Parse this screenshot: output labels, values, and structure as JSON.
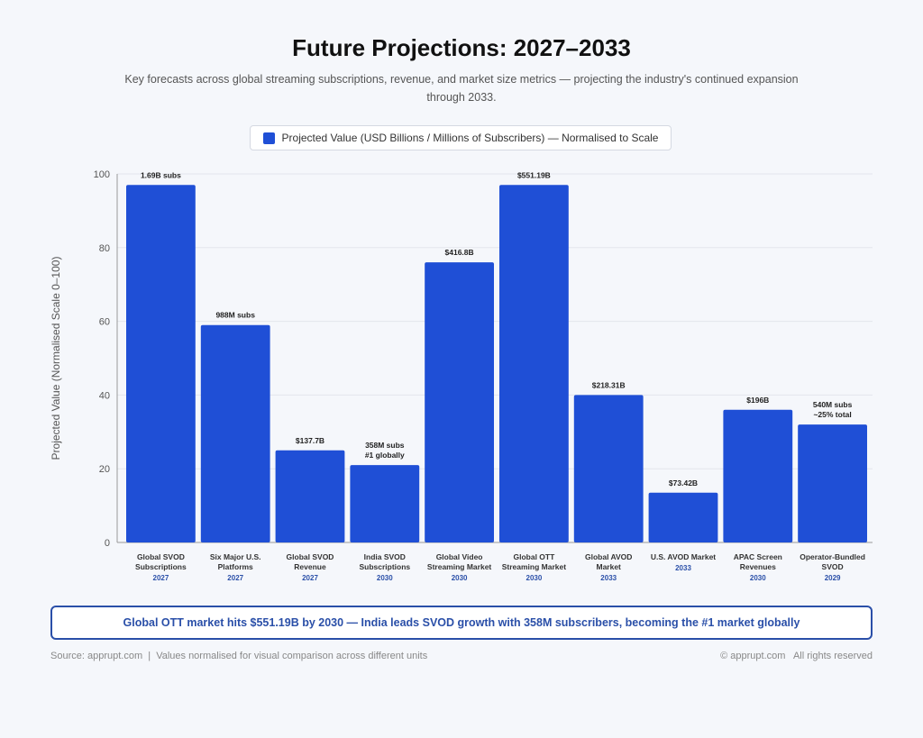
{
  "header": {
    "title": "Future Projections: 2027–2033",
    "subtitle": "Key forecasts across global streaming subscriptions, revenue, and market size metrics — projecting the industry's continued expansion through 2033."
  },
  "legend": {
    "label": "Projected Value (USD Billions / Millions of Subscribers) — Normalised to Scale"
  },
  "callout": "Global OTT market hits $551.19B by 2030 — India leads SVOD growth with 358M subscribers, becoming the #1 market globally",
  "footer": {
    "left": "Source: apprupt.com  |  Values normalised for visual comparison across different units",
    "right": "© apprupt.com   All rights reserved"
  },
  "chart_data": {
    "type": "bar",
    "ylabel": "Projected Value (Normalised Scale 0–100)",
    "xlabel": "",
    "ylim": [
      0,
      100
    ],
    "yticks": [
      0,
      20,
      40,
      60,
      80,
      100
    ],
    "grid": true,
    "bar_color": "#1f4fd6",
    "year_color": "#2a4fa8",
    "categories": [
      {
        "label": [
          "Global SVOD",
          "Subscriptions"
        ],
        "year": "2027",
        "value": 97,
        "data_label": [
          "1.69B subs"
        ]
      },
      {
        "label": [
          "Six Major U.S.",
          "Platforms"
        ],
        "year": "2027",
        "value": 59,
        "data_label": [
          "988M subs"
        ]
      },
      {
        "label": [
          "Global SVOD",
          "Revenue"
        ],
        "year": "2027",
        "value": 25,
        "data_label": [
          "$137.7B"
        ]
      },
      {
        "label": [
          "India SVOD",
          "Subscriptions"
        ],
        "year": "2030",
        "value": 21,
        "data_label": [
          "358M subs",
          "#1 globally"
        ]
      },
      {
        "label": [
          "Global Video",
          "Streaming Market"
        ],
        "year": "2030",
        "value": 76,
        "data_label": [
          "$416.8B"
        ]
      },
      {
        "label": [
          "Global OTT",
          "Streaming Market"
        ],
        "year": "2030",
        "value": 97,
        "data_label": [
          "$551.19B"
        ]
      },
      {
        "label": [
          "Global AVOD",
          "Market"
        ],
        "year": "2033",
        "value": 40,
        "data_label": [
          "$218.31B"
        ]
      },
      {
        "label": [
          "U.S. AVOD Market"
        ],
        "year": "2033",
        "value": 13.5,
        "data_label": [
          "$73.42B"
        ]
      },
      {
        "label": [
          "APAC Screen",
          "Revenues"
        ],
        "year": "2030",
        "value": 36,
        "data_label": [
          "$196B"
        ]
      },
      {
        "label": [
          "Operator-Bundled",
          "SVOD"
        ],
        "year": "2029",
        "value": 32,
        "data_label": [
          "540M subs",
          "~25% total"
        ]
      }
    ]
  }
}
